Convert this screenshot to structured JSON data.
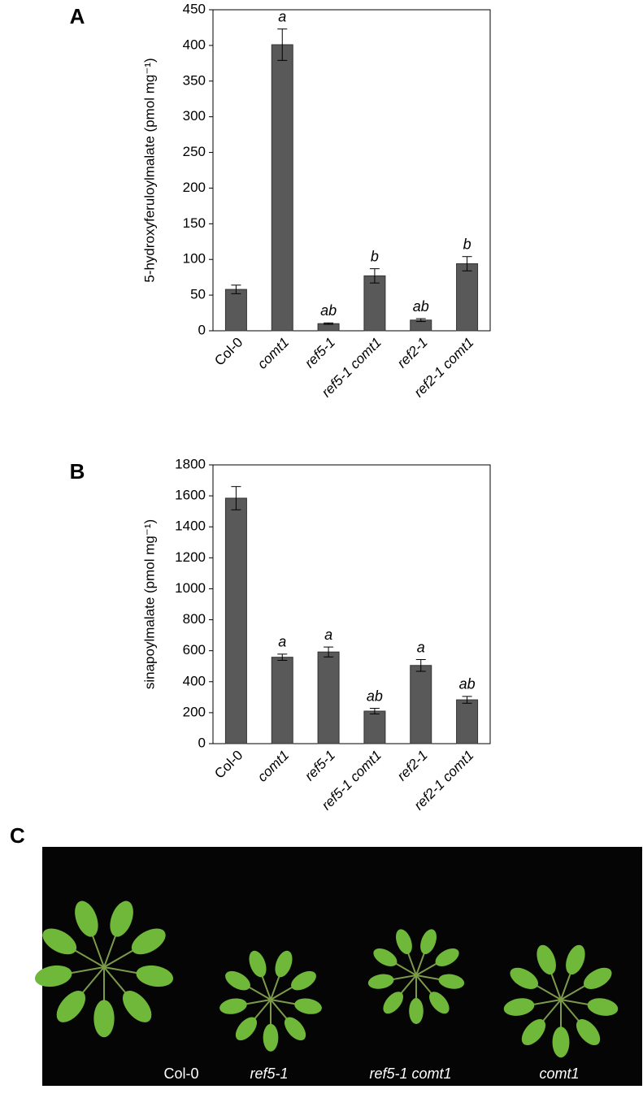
{
  "chart_data": [
    {
      "type": "bar",
      "panel_label": "A",
      "ylabel": "5-hydroxyferuloylmalate (pmol mg⁻¹)",
      "categories": [
        "Col-0",
        "comt1",
        "ref5-1",
        "ref5-1 comt1",
        "ref2-1",
        "ref2-1 comt1"
      ],
      "values": [
        58,
        401,
        10,
        77,
        15,
        94
      ],
      "errors": [
        6,
        22,
        1,
        10,
        2,
        10
      ],
      "sig_labels": [
        null,
        "a",
        "ab",
        "b",
        "ab",
        "b"
      ],
      "color": "#595959",
      "ylim": [
        0,
        450
      ],
      "yticks": [
        0,
        50,
        100,
        150,
        200,
        250,
        300,
        350,
        400,
        450
      ]
    },
    {
      "type": "bar",
      "panel_label": "B",
      "ylabel": "sinapoylmalate (pmol mg⁻¹)",
      "categories": [
        "Col-0",
        "comt1",
        "ref5-1",
        "ref5-1 comt1",
        "ref2-1",
        "ref2-1 comt1"
      ],
      "values": [
        1585,
        558,
        592,
        210,
        505,
        283
      ],
      "errors": [
        75,
        20,
        32,
        18,
        38,
        22
      ],
      "sig_labels": [
        null,
        "a",
        "a",
        "ab",
        "a",
        "ab"
      ],
      "color": "#595959",
      "ylim": [
        0,
        1800
      ],
      "yticks": [
        0,
        200,
        400,
        600,
        800,
        1000,
        1200,
        1400,
        1600,
        1800
      ]
    }
  ],
  "panel_c": {
    "panel_label": "C",
    "labels": [
      "Col-0",
      "ref5-1",
      "ref5-1 comt1",
      "comt1"
    ]
  }
}
